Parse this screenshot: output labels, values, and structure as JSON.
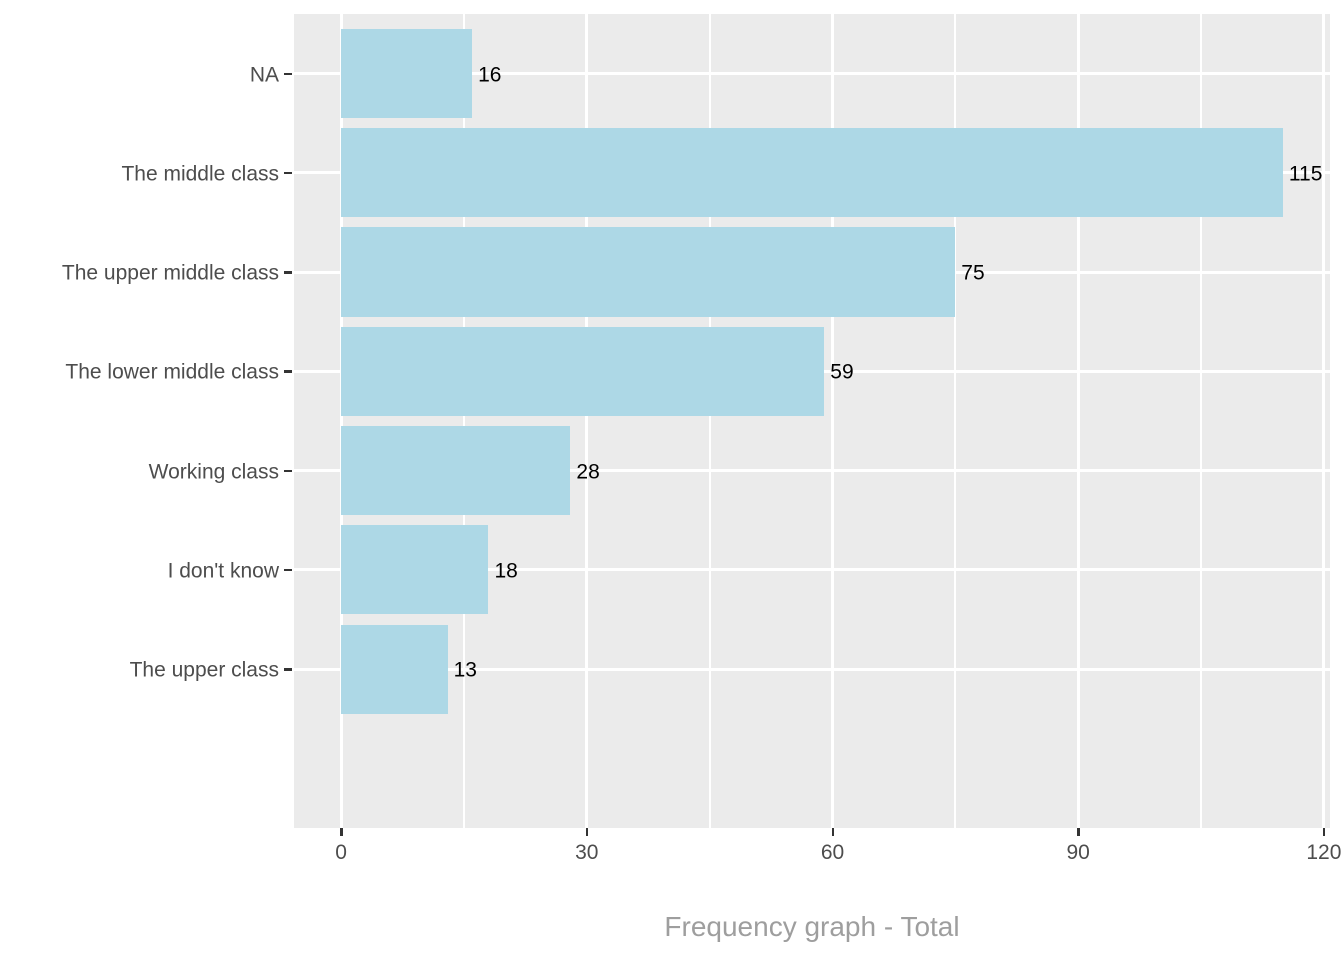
{
  "chart_data": {
    "type": "bar",
    "orientation": "horizontal",
    "title": "",
    "xlabel": "Frequency graph - Total",
    "ylabel": "",
    "categories": [
      "NA",
      "The middle class",
      "The upper middle class",
      "The lower middle class",
      "Working class",
      "I don't know",
      "The upper class"
    ],
    "values": [
      16,
      115,
      75,
      59,
      28,
      18,
      13
    ],
    "value_labels": [
      "16",
      "115",
      "75",
      "59",
      "28",
      "18",
      "13"
    ],
    "x_ticks": [
      0,
      30,
      60,
      90,
      120
    ],
    "x_tick_labels": [
      "0",
      "30",
      "60",
      "90",
      "120"
    ],
    "x_minor_ticks": [
      15,
      45,
      75,
      105
    ],
    "xlim": [
      -5.75,
      120.75
    ],
    "bar_width_fraction": 0.9,
    "grid": "on",
    "legend_position": "none",
    "colors": {
      "bar": "#ADD8E6",
      "panel_background": "#EBEBEB",
      "gridline_major": "#FFFFFF",
      "gridline_minor": "#FFFFFF",
      "axis_text": "#4D4D4D",
      "tick_mark": "#333333",
      "value_label": "#000000",
      "axis_title": "#9E9E9E",
      "figure_background": "#FFFFFF"
    }
  }
}
